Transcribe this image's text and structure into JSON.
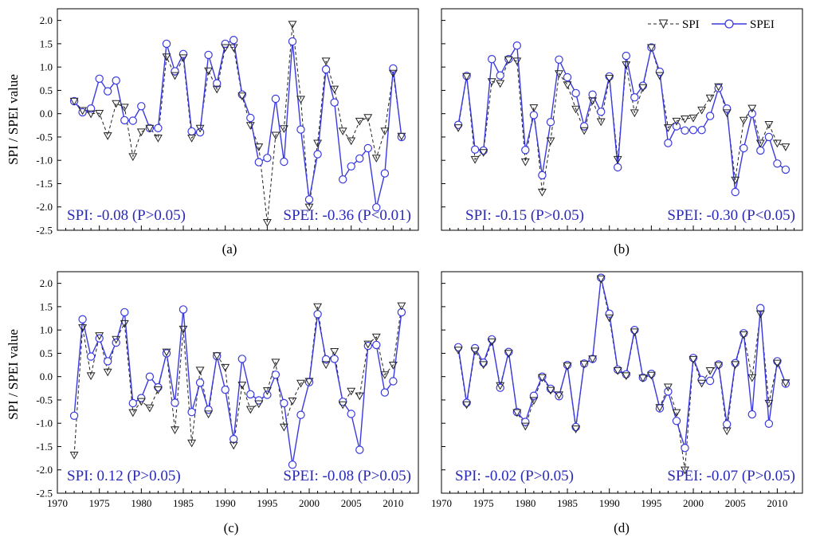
{
  "figure": {
    "ylabel": "SPI / SPEI value",
    "legend": {
      "spi_label": "SPI",
      "spei_label": "SPEI",
      "placement": "top-right of panel (b)"
    },
    "colors": {
      "spi": "#222222",
      "spei": "#3a3ae0",
      "stat_text": "#2a2ab8"
    }
  },
  "chart_data": [
    {
      "type": "line",
      "panel": "(a)",
      "x": [
        1972,
        1973,
        1974,
        1975,
        1976,
        1977,
        1978,
        1979,
        1980,
        1981,
        1982,
        1983,
        1984,
        1985,
        1986,
        1987,
        1988,
        1989,
        1990,
        1991,
        1992,
        1993,
        1994,
        1995,
        1996,
        1997,
        1998,
        1999,
        2000,
        2001,
        2002,
        2003,
        2004,
        2005,
        2006,
        2007,
        2008,
        2009,
        2010,
        2011
      ],
      "series": [
        {
          "name": "SPI",
          "values": [
            0.27,
            0.07,
            0.0,
            0.01,
            -0.47,
            0.22,
            0.14,
            -0.92,
            -0.39,
            -0.31,
            -0.52,
            1.22,
            0.82,
            1.2,
            -0.52,
            -0.31,
            0.92,
            0.53,
            1.42,
            1.42,
            0.38,
            -0.25,
            -0.71,
            -2.33,
            -0.46,
            -0.32,
            1.92,
            0.31,
            -2.0,
            -0.63,
            1.13,
            0.53,
            -0.37,
            -0.58,
            -0.16,
            -0.08,
            -0.95,
            -0.37,
            0.87,
            -0.48
          ]
        },
        {
          "name": "SPEI",
          "values": [
            0.27,
            0.03,
            0.11,
            0.75,
            0.48,
            0.71,
            -0.14,
            -0.15,
            0.16,
            -0.31,
            -0.31,
            1.5,
            0.91,
            1.28,
            -0.38,
            -0.4,
            1.26,
            0.65,
            1.5,
            1.58,
            0.41,
            -0.09,
            -1.04,
            -0.95,
            0.32,
            -1.03,
            1.55,
            -0.34,
            -1.84,
            -0.87,
            0.95,
            0.24,
            -1.41,
            -1.13,
            -0.96,
            -0.74,
            -2.01,
            -1.28,
            0.97,
            -0.5
          ]
        }
      ],
      "xlim": [
        1970,
        2013
      ],
      "ylim": [
        -2.5,
        2.25
      ],
      "xticks": [
        1970,
        1975,
        1980,
        1985,
        1990,
        1995,
        2000,
        2005,
        2010
      ],
      "yticks": [
        -2.5,
        -2.0,
        -1.5,
        -1.0,
        -0.5,
        0.0,
        0.5,
        1.0,
        1.5,
        2.0
      ],
      "yticklabels": [
        "-2.5",
        "-2.0",
        "-1.5",
        "-1.0",
        "-0.5",
        "0.0",
        "0.5",
        "1.0",
        "1.5",
        "2.0"
      ],
      "show_yticklabels": true,
      "show_xticklabels": false,
      "spi_stat": "SPI: -0.08 (P>0.05)",
      "spei_stat": "SPEI: -0.36 (P<0.01)"
    },
    {
      "type": "line",
      "panel": "(b)",
      "x": [
        1972,
        1973,
        1974,
        1975,
        1976,
        1977,
        1978,
        1979,
        1980,
        1981,
        1982,
        1983,
        1984,
        1985,
        1986,
        1987,
        1988,
        1989,
        1990,
        1991,
        1992,
        1993,
        1994,
        1995,
        1996,
        1997,
        1998,
        1999,
        2000,
        2001,
        2002,
        2003,
        2004,
        2005,
        2006,
        2007,
        2008,
        2009,
        2010,
        2011
      ],
      "series": [
        {
          "name": "SPI",
          "values": [
            -0.3,
            0.8,
            -0.98,
            -0.83,
            0.69,
            0.65,
            1.16,
            1.13,
            -1.03,
            0.13,
            -1.68,
            -0.58,
            0.86,
            0.62,
            0.1,
            -0.36,
            0.28,
            -0.17,
            0.76,
            -0.98,
            1.05,
            0.02,
            0.56,
            1.42,
            0.82,
            -0.3,
            -0.16,
            -0.11,
            -0.09,
            0.08,
            0.34,
            0.58,
            0.02,
            -1.42,
            -0.14,
            0.12,
            -0.63,
            -0.23,
            -0.63,
            -0.71
          ]
        },
        {
          "name": "SPEI",
          "values": [
            -0.24,
            0.81,
            -0.77,
            -0.79,
            1.17,
            0.82,
            1.17,
            1.46,
            -0.78,
            -0.03,
            -1.32,
            -0.18,
            1.16,
            0.78,
            0.44,
            -0.27,
            0.41,
            0.04,
            0.8,
            -1.15,
            1.24,
            0.35,
            0.6,
            1.42,
            0.9,
            -0.63,
            -0.27,
            -0.36,
            -0.35,
            -0.35,
            -0.05,
            0.55,
            0.11,
            -1.68,
            -0.74,
            0.0,
            -0.79,
            -0.5,
            -1.07,
            -1.2
          ]
        }
      ],
      "xlim": [
        1970,
        2013
      ],
      "ylim": [
        -2.5,
        2.25
      ],
      "xticks": [
        1970,
        1975,
        1980,
        1985,
        1990,
        1995,
        2000,
        2005,
        2010
      ],
      "yticks": [
        -2.5,
        -2.0,
        -1.5,
        -1.0,
        -0.5,
        0.0,
        0.5,
        1.0,
        1.5,
        2.0
      ],
      "show_yticklabels": false,
      "show_xticklabels": false,
      "spi_stat": "SPI: -0.15 (P>0.05)",
      "spei_stat": "SPEI: -0.30 (P<0.05)"
    },
    {
      "type": "line",
      "panel": "(c)",
      "x": [
        1972,
        1973,
        1974,
        1975,
        1976,
        1977,
        1978,
        1979,
        1980,
        1981,
        1982,
        1983,
        1984,
        1985,
        1986,
        1987,
        1988,
        1989,
        1990,
        1991,
        1992,
        1993,
        1994,
        1995,
        1996,
        1997,
        1998,
        1999,
        2000,
        2001,
        2002,
        2003,
        2004,
        2005,
        2006,
        2007,
        2008,
        2009,
        2010,
        2011
      ],
      "series": [
        {
          "name": "SPI",
          "values": [
            -1.68,
            1.05,
            0.02,
            0.88,
            0.1,
            0.8,
            1.14,
            -0.77,
            -0.53,
            -0.67,
            -0.28,
            0.53,
            -1.14,
            1.02,
            -1.42,
            0.14,
            -0.8,
            0.45,
            0.2,
            -1.47,
            -0.18,
            -0.7,
            -0.58,
            -0.3,
            0.31,
            -1.08,
            -0.52,
            -0.14,
            -0.1,
            1.5,
            0.26,
            0.54,
            -0.6,
            -0.31,
            -0.41,
            0.7,
            0.85,
            0.04,
            0.25,
            1.52
          ]
        },
        {
          "name": "SPEI",
          "values": [
            -0.84,
            1.23,
            0.43,
            0.82,
            0.33,
            0.73,
            1.38,
            -0.57,
            -0.46,
            0.0,
            -0.23,
            0.5,
            -0.56,
            1.44,
            -0.76,
            -0.13,
            -0.71,
            0.44,
            -0.28,
            -1.34,
            0.38,
            -0.38,
            -0.51,
            -0.39,
            0.04,
            -0.57,
            -1.89,
            -0.82,
            -0.12,
            1.34,
            0.37,
            0.38,
            -0.54,
            -0.8,
            -1.57,
            0.66,
            0.68,
            -0.34,
            -0.1,
            1.38
          ]
        }
      ],
      "xlim": [
        1970,
        2013
      ],
      "ylim": [
        -2.5,
        2.25
      ],
      "xticks": [
        1970,
        1975,
        1980,
        1985,
        1990,
        1995,
        2000,
        2005,
        2010
      ],
      "xticklabels": [
        "1970",
        "1975",
        "1980",
        "1985",
        "1990",
        "1995",
        "2000",
        "2005",
        "2010"
      ],
      "yticks": [
        -2.5,
        -2.0,
        -1.5,
        -1.0,
        -0.5,
        0.0,
        0.5,
        1.0,
        1.5,
        2.0
      ],
      "yticklabels": [
        "-2.5",
        "-2.0",
        "-1.5",
        "-1.0",
        "-0.5",
        "0.0",
        "0.5",
        "1.0",
        "1.5",
        "2.0"
      ],
      "show_yticklabels": true,
      "show_xticklabels": true,
      "spi_stat": "SPI: 0.12 (P>0.05)",
      "spei_stat": "SPEI: -0.08 (P>0.05)"
    },
    {
      "type": "line",
      "panel": "(d)",
      "x": [
        1972,
        1973,
        1974,
        1975,
        1976,
        1977,
        1978,
        1979,
        1980,
        1981,
        1982,
        1983,
        1984,
        1985,
        1986,
        1987,
        1988,
        1989,
        1990,
        1991,
        1992,
        1993,
        1994,
        1995,
        1996,
        1997,
        1998,
        1999,
        2000,
        2001,
        2002,
        2003,
        2004,
        2005,
        2006,
        2007,
        2008,
        2009,
        2010,
        2011
      ],
      "series": [
        {
          "name": "SPI",
          "values": [
            0.57,
            -0.6,
            0.55,
            0.26,
            0.75,
            -0.19,
            0.5,
            -0.77,
            -1.06,
            -0.51,
            -0.02,
            -0.29,
            -0.39,
            0.23,
            -1.12,
            0.27,
            0.38,
            2.1,
            1.26,
            0.13,
            0.02,
            0.96,
            -0.03,
            0.03,
            -0.66,
            -0.22,
            -0.77,
            -2.0,
            0.37,
            -0.14,
            0.13,
            0.24,
            -1.16,
            0.26,
            0.9,
            -0.02,
            1.35,
            -0.57,
            0.29,
            -0.13
          ]
        },
        {
          "name": "SPEI",
          "values": [
            0.63,
            -0.56,
            0.61,
            0.3,
            0.8,
            -0.24,
            0.53,
            -0.76,
            -0.97,
            -0.41,
            0.0,
            -0.26,
            -0.42,
            0.25,
            -1.08,
            0.28,
            0.38,
            2.12,
            1.35,
            0.15,
            0.05,
            1.0,
            -0.02,
            0.06,
            -0.68,
            -0.32,
            -0.95,
            -1.53,
            0.4,
            -0.07,
            -0.09,
            0.26,
            -1.02,
            0.29,
            0.93,
            -0.81,
            1.47,
            -1.01,
            0.33,
            -0.15
          ]
        }
      ],
      "xlim": [
        1970,
        2013
      ],
      "ylim": [
        -2.5,
        2.25
      ],
      "xticks": [
        1970,
        1975,
        1980,
        1985,
        1990,
        1995,
        2000,
        2005,
        2010
      ],
      "xticklabels": [
        "1970",
        "1975",
        "1980",
        "1985",
        "1990",
        "1995",
        "2000",
        "2005",
        "2010"
      ],
      "yticks": [
        -2.5,
        -2.0,
        -1.5,
        -1.0,
        -0.5,
        0.0,
        0.5,
        1.0,
        1.5,
        2.0
      ],
      "show_yticklabels": false,
      "show_xticklabels": true,
      "spi_stat": "SPI: -0.02 (P>0.05)",
      "spei_stat": "SPEI: -0.07 (P>0.05)"
    }
  ]
}
